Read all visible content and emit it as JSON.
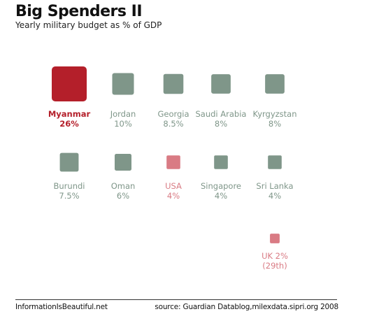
{
  "title": "Big Spenders II",
  "subtitle": "Yearly military budget as %  of GDP",
  "footer": {
    "brand": "InformationIsBeautiful.net",
    "source": "source: Guardian Datablog,milexdata.sipri.org 2008"
  },
  "colors": {
    "highlight": "#b41f2a",
    "default": "#7f9689",
    "secondary": "#d97b84"
  },
  "chart_data": {
    "type": "proportional-square",
    "unit": "%",
    "items": [
      {
        "name": "Myanmar",
        "label": "26%",
        "value": 26,
        "color": "highlight"
      },
      {
        "name": "Jordan",
        "label": "10%",
        "value": 10,
        "color": "default"
      },
      {
        "name": "Georgia",
        "label": "8.5%",
        "value": 8.5,
        "color": "default"
      },
      {
        "name": "Saudi Arabia",
        "label": "8%",
        "value": 8,
        "color": "default"
      },
      {
        "name": "Kyrgyzstan",
        "label": "8%",
        "value": 8,
        "color": "default"
      },
      {
        "name": "Burundi",
        "label": "7.5%",
        "value": 7.5,
        "color": "default"
      },
      {
        "name": "Oman",
        "label": "6%",
        "value": 6,
        "color": "default"
      },
      {
        "name": "USA",
        "label": "4%",
        "value": 4,
        "color": "secondary"
      },
      {
        "name": "Singapore",
        "label": "4%",
        "value": 4,
        "color": "default"
      },
      {
        "name": "Sri Lanka",
        "label": "4%",
        "value": 4,
        "color": "default"
      },
      {
        "name": "UK 2%",
        "label": "(29th)",
        "value": 2,
        "color": "secondary"
      }
    ]
  }
}
